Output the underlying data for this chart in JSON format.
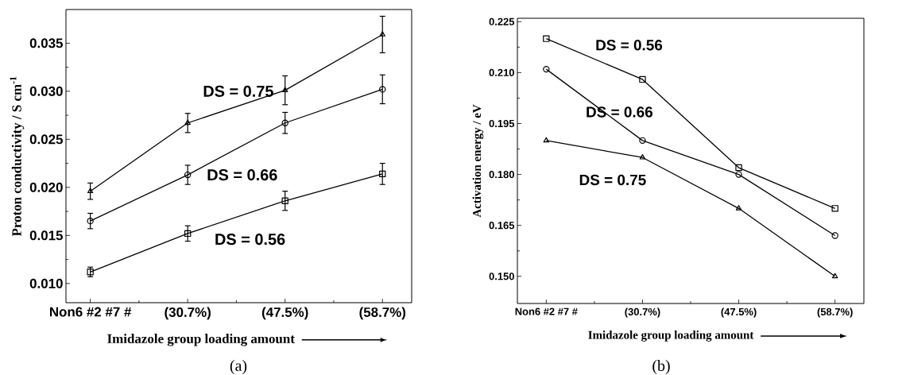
{
  "chart_data": [
    {
      "type": "line",
      "xlabel": "Imidazole group loading amount",
      "ylabel": "Proton conductivity / S cm$^{-1}$",
      "categories": [
        "Non6 #2 #7 #",
        "(30.7%)",
        "(47.5%)",
        "(58.7%)"
      ],
      "ylim": [
        0.008,
        0.0385
      ],
      "yticks": [
        {
          "value": 0.01,
          "label": "0.010"
        },
        0.015,
        {
          "value": 0.02,
          "label": "0.020"
        },
        0.025,
        {
          "value": 0.03,
          "label": "0.030"
        },
        0.035
      ],
      "series": [
        {
          "name": "DS = 0.75",
          "color": "#000000",
          "marker": "triangle",
          "values": [
            0.0196,
            0.0267,
            0.0301,
            0.0359
          ],
          "errors": [
            0.00085,
            0.001,
            0.0015,
            0.0019
          ]
        },
        {
          "name": "DS = 0.66",
          "color": "#000000",
          "marker": "circle",
          "values": [
            0.0165,
            0.0213,
            0.0267,
            0.0302
          ],
          "errors": [
            0.0008,
            0.001,
            0.0011,
            0.0015
          ]
        },
        {
          "name": "DS = 0.56",
          "color": "#000000",
          "marker": "square",
          "values": [
            0.0112,
            0.0152,
            0.0186,
            0.0214
          ],
          "errors": [
            0.0005,
            0.0008,
            0.001,
            0.0011
          ]
        }
      ],
      "annotations": [
        "(a)"
      ]
    },
    {
      "type": "line",
      "xlabel": "Imidazole group loading amount",
      "ylabel": "Activation energy / eV",
      "categories": [
        "Non6 #2 #7 #",
        "(30.7%)",
        "(47.5%)",
        "(58.7%)"
      ],
      "ylim": [
        0.142,
        0.226
      ],
      "yticks": [
        {
          "value": 0.15,
          "label": "0.150"
        },
        0.165,
        {
          "value": 0.18,
          "label": "0.180"
        },
        0.195,
        {
          "value": 0.21,
          "label": "0.210"
        },
        0.225
      ],
      "series": [
        {
          "name": "DS = 0.56",
          "color": "#000000",
          "marker": "square",
          "values": [
            0.22,
            0.208,
            0.182,
            0.17
          ]
        },
        {
          "name": "DS = 0.66",
          "color": "#000000",
          "marker": "circle",
          "values": [
            0.211,
            0.19,
            0.18,
            0.162
          ]
        },
        {
          "name": "DS = 0.75",
          "color": "#000000",
          "marker": "triangle",
          "values": [
            0.19,
            0.185,
            0.17,
            0.15
          ]
        }
      ],
      "annotations": [
        "(b)"
      ]
    }
  ]
}
